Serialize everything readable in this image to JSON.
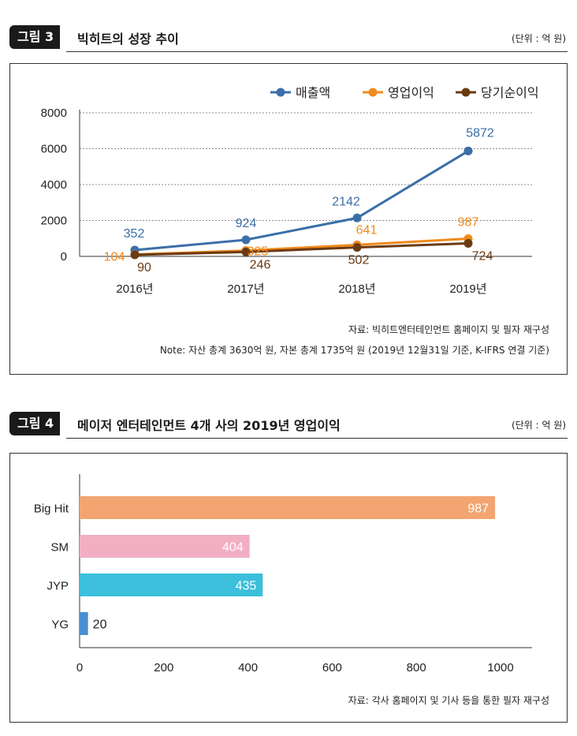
{
  "figure1": {
    "badge": "그림 3",
    "title": "빅히트의 성장 추이",
    "unit": "(단위 : 억 원)",
    "source": "자료: 빅히트엔터테인먼트 홈페이지 및 필자 재구성",
    "note": "Note: 자산 총계 3630억 원, 자본 총계 1735억 원 (2019년 12월31일 기준, K-IFRS 연결 기준)"
  },
  "figure2": {
    "badge": "그림 4",
    "title": "메이저 엔터테인먼트 4개 사의 2019년 영업이익",
    "unit": "(단위 : 억 원)",
    "source": "자료: 각사 홈페이지 및 기사 등을 통한 필자 재구성"
  },
  "chart_data": [
    {
      "type": "line",
      "title": "빅히트의 성장 추이",
      "categories": [
        "2016년",
        "2017년",
        "2018년",
        "2019년"
      ],
      "series": [
        {
          "name": "매출액",
          "color": "#3a6fa8",
          "values": [
            352,
            924,
            2142,
            5872
          ],
          "labels": [
            "352",
            "924",
            "2142",
            "5872"
          ]
        },
        {
          "name": "영업이익",
          "color": "#f08a1c",
          "values": [
            104,
            325,
            641,
            987
          ],
          "labels": [
            "104",
            "325",
            "641",
            "987"
          ]
        },
        {
          "name": "당기순이익",
          "color": "#6b3a12",
          "values": [
            90,
            246,
            502,
            724
          ],
          "labels": [
            "90",
            "246",
            "502",
            "724"
          ]
        }
      ],
      "ylim": [
        0,
        8000
      ],
      "yticks": [
        "0",
        "2000",
        "4000",
        "6000",
        "8000"
      ],
      "grid": true,
      "legend": "top-right"
    },
    {
      "type": "bar",
      "orientation": "horizontal",
      "title": "메이저 엔터테인먼트 4개 사의 2019년 영업이익",
      "categories": [
        "Big Hit",
        "SM",
        "JYP",
        "YG"
      ],
      "values": [
        987,
        404,
        435,
        20
      ],
      "labels": [
        "987",
        "404",
        "435",
        "20"
      ],
      "colors": [
        "#f2a571",
        "#f2afc4",
        "#3cbfdb",
        "#4a8fd1"
      ],
      "xlim": [
        0,
        1000
      ],
      "xticks": [
        "0",
        "200",
        "400",
        "600",
        "800",
        "1000"
      ],
      "grid": false
    }
  ]
}
